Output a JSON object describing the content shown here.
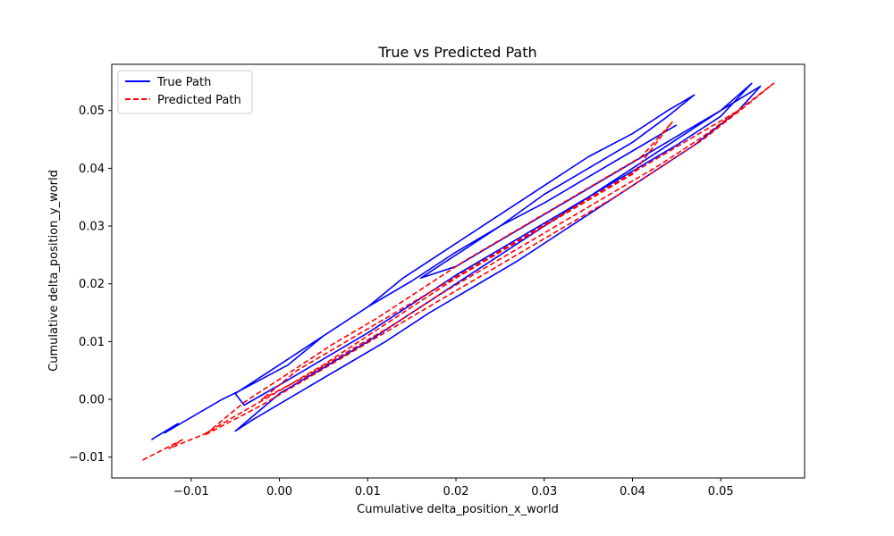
{
  "chart_data": {
    "type": "line",
    "title": "True vs Predicted Path",
    "xlabel": "Cumulative delta_position_x_world",
    "ylabel": "Cumulative delta_position_y_world",
    "xlim": [
      -0.019,
      0.0595
    ],
    "ylim": [
      -0.0136,
      0.058
    ],
    "xticks": [
      -0.01,
      0.0,
      0.01,
      0.02,
      0.03,
      0.04,
      0.05
    ],
    "xtick_labels": [
      "−0.01",
      "0.00",
      "0.01",
      "0.02",
      "0.03",
      "0.04",
      "0.05"
    ],
    "yticks": [
      -0.01,
      0.0,
      0.01,
      0.02,
      0.03,
      0.04,
      0.05
    ],
    "ytick_labels": [
      "−0.01",
      "0.00",
      "0.01",
      "0.02",
      "0.03",
      "0.04",
      "0.05"
    ],
    "grid": false,
    "legend_position": "upper-left",
    "series": [
      {
        "name": "True Path",
        "color": "#0000ff",
        "style": "solid",
        "x": [
          -0.0145,
          -0.014,
          -0.0115,
          -0.013,
          -0.011,
          -0.0065,
          -0.0045,
          0.001,
          0.005,
          0.01,
          0.014,
          0.019,
          0.023,
          0.027,
          0.031,
          0.035,
          0.04,
          0.044,
          0.047,
          0.044,
          0.04,
          0.035,
          0.03,
          0.025,
          0.02,
          0.015,
          0.01,
          0.005,
          0.0,
          -0.005,
          -0.004,
          0.0,
          0.005,
          0.01,
          0.015,
          0.02,
          0.025,
          0.03,
          0.035,
          0.04,
          0.045,
          0.05,
          0.0535,
          0.05,
          0.045,
          0.04,
          0.035,
          0.03,
          0.025,
          0.02,
          0.015,
          0.01,
          0.005,
          0.0,
          -0.005,
          -0.003,
          0.002,
          0.007,
          0.012,
          0.017,
          0.022,
          0.027,
          0.032,
          0.037,
          0.042,
          0.047,
          0.052,
          0.0545,
          0.05,
          0.045,
          0.04,
          0.035,
          0.03,
          0.025,
          0.02,
          0.016,
          0.02,
          0.025,
          0.03,
          0.035,
          0.04,
          0.045
        ],
        "y": [
          -0.007,
          -0.0065,
          -0.0042,
          -0.0058,
          -0.004,
          0.0,
          0.0015,
          0.006,
          0.011,
          0.016,
          0.021,
          0.026,
          0.03,
          0.034,
          0.038,
          0.042,
          0.046,
          0.05,
          0.0527,
          0.049,
          0.0445,
          0.04,
          0.0355,
          0.03,
          0.0255,
          0.0205,
          0.016,
          0.011,
          0.006,
          0.001,
          -0.001,
          0.0025,
          0.007,
          0.0115,
          0.0165,
          0.0215,
          0.026,
          0.0305,
          0.035,
          0.0395,
          0.044,
          0.049,
          0.0547,
          0.05,
          0.045,
          0.04,
          0.035,
          0.03,
          0.025,
          0.02,
          0.015,
          0.01,
          0.0055,
          0.001,
          -0.0055,
          -0.0035,
          0.001,
          0.0055,
          0.01,
          0.015,
          0.0195,
          0.024,
          0.029,
          0.034,
          0.039,
          0.044,
          0.05,
          0.0542,
          0.05,
          0.0455,
          0.041,
          0.0365,
          0.032,
          0.0275,
          0.023,
          0.021,
          0.025,
          0.03,
          0.034,
          0.0385,
          0.043,
          0.0475
        ]
      },
      {
        "name": "Predicted Path",
        "color": "#ff0000",
        "style": "dashed",
        "x": [
          -0.0155,
          -0.011,
          -0.0125,
          -0.0085,
          -0.004,
          0.0,
          0.005,
          0.01,
          0.015,
          0.02,
          0.025,
          0.03,
          0.035,
          0.04,
          0.0445,
          0.041,
          0.036,
          0.031,
          0.026,
          0.021,
          0.016,
          0.011,
          0.006,
          0.001,
          -0.004,
          -0.0085,
          -0.007,
          -0.002,
          0.003,
          0.008,
          0.013,
          0.018,
          0.023,
          0.028,
          0.033,
          0.038,
          0.043,
          0.048,
          0.053,
          0.056,
          0.052,
          0.047,
          0.042,
          0.037,
          0.032,
          0.027,
          0.022,
          0.017,
          0.012,
          0.007,
          0.002,
          -0.002,
          0.003,
          0.008,
          0.013,
          0.018,
          0.023,
          0.028,
          0.033,
          0.038,
          0.043,
          0.048,
          0.052
        ],
        "y": [
          -0.0105,
          -0.007,
          -0.0085,
          -0.006,
          -0.002,
          0.0015,
          0.006,
          0.011,
          0.016,
          0.021,
          0.0255,
          0.03,
          0.0345,
          0.039,
          0.048,
          0.042,
          0.0375,
          0.033,
          0.0285,
          0.024,
          0.019,
          0.014,
          0.0095,
          0.0045,
          -0.0005,
          -0.0062,
          -0.005,
          -0.001,
          0.0035,
          0.008,
          0.0125,
          0.017,
          0.0215,
          0.026,
          0.0305,
          0.035,
          0.04,
          0.045,
          0.051,
          0.0547,
          0.05,
          0.0455,
          0.041,
          0.0365,
          0.032,
          0.0275,
          0.023,
          0.0185,
          0.014,
          0.0095,
          0.005,
          0.0,
          0.004,
          0.0085,
          0.013,
          0.018,
          0.0225,
          0.027,
          0.0315,
          0.036,
          0.0405,
          0.0455,
          0.05
        ]
      }
    ]
  }
}
